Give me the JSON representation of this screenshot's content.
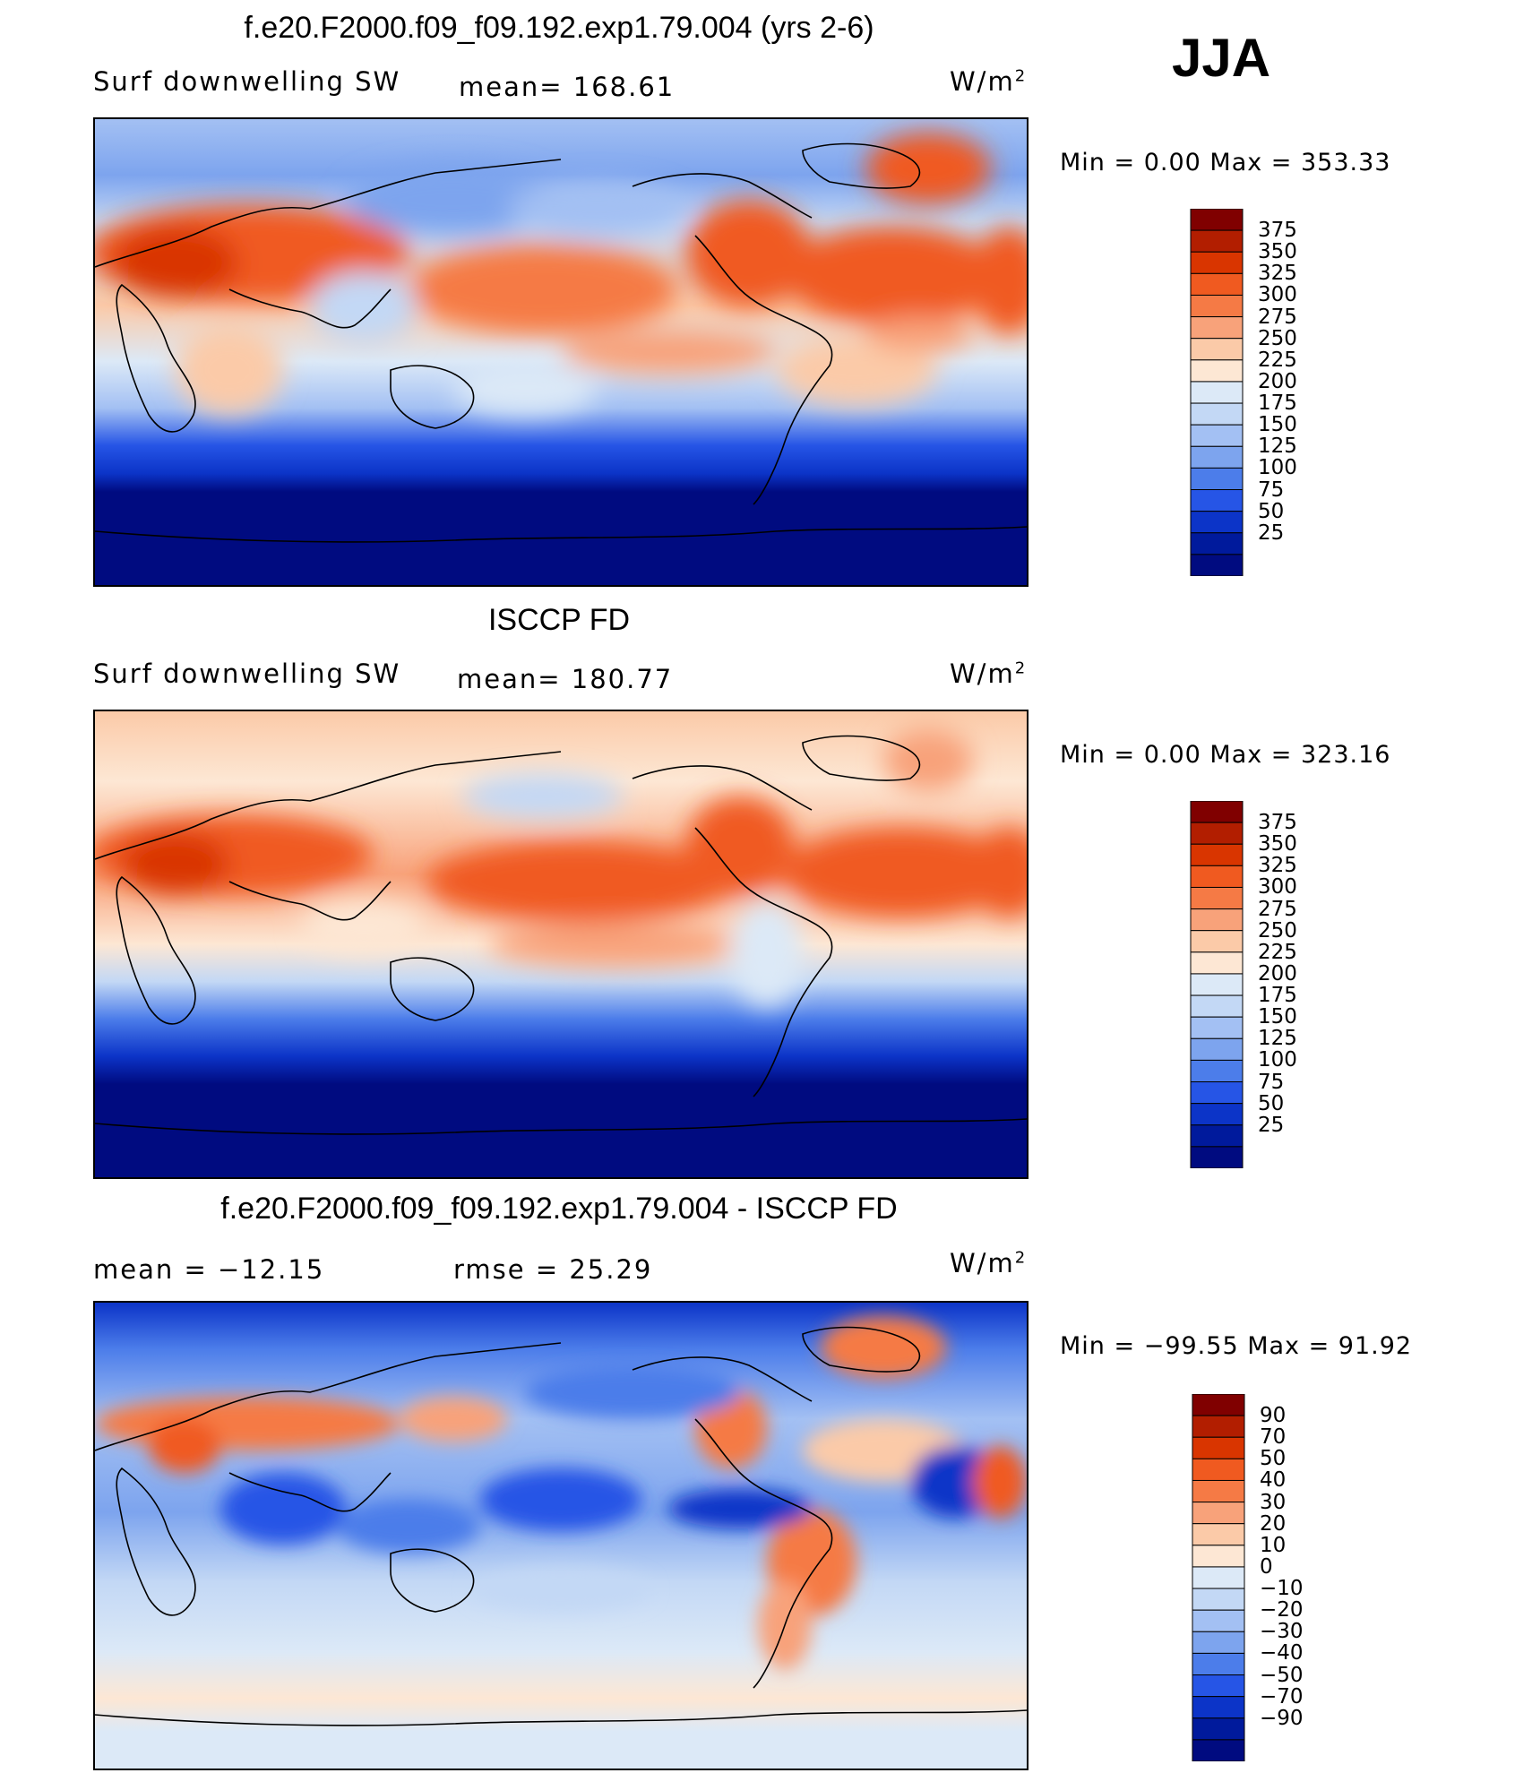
{
  "season": "JJA",
  "panels": [
    {
      "title": "f.e20.F2000.f09_f09.192.exp1.79.004 (yrs 2-6)",
      "left_label": "Surf  downwelling  SW",
      "center_label": "mean=  168.61",
      "units": "W/m",
      "units_sup": "2",
      "minmax": "Min  =      0.00  Max  =  353.33"
    },
    {
      "title": "ISCCP FD",
      "left_label": "Surf  downwelling  SW",
      "center_label": "mean=  180.77",
      "units": "W/m",
      "units_sup": "2",
      "minmax": "Min  =      0.00  Max  =  323.16"
    },
    {
      "title": "f.e20.F2000.f09_f09.192.exp1.79.004 - ISCCP FD",
      "left_label": "mean  =  −12.15",
      "center_label": "rmse  =    25.29",
      "units": "W/m",
      "units_sup": "2",
      "minmax": "Min  =  −99.55  Max  =    91.92"
    }
  ],
  "chart_data": [
    {
      "type": "heatmap",
      "title": "f.e20.F2000.f09_f09.192.exp1.79.004 (yrs 2-6)",
      "variable": "Surf downwelling SW",
      "mean": 168.61,
      "min": 0.0,
      "max": 353.33,
      "units": "W/m2",
      "colorbar_levels": [
        375,
        350,
        325,
        300,
        275,
        250,
        225,
        200,
        175,
        150,
        125,
        100,
        75,
        50,
        25
      ]
    },
    {
      "type": "heatmap",
      "title": "ISCCP FD",
      "variable": "Surf downwelling SW",
      "mean": 180.77,
      "min": 0.0,
      "max": 323.16,
      "units": "W/m2",
      "colorbar_levels": [
        375,
        350,
        325,
        300,
        275,
        250,
        225,
        200,
        175,
        150,
        125,
        100,
        75,
        50,
        25
      ]
    },
    {
      "type": "heatmap",
      "title": "f.e20.F2000.f09_f09.192.exp1.79.004 - ISCCP FD",
      "mean": -12.15,
      "rmse": 25.29,
      "min": -99.55,
      "max": 91.92,
      "units": "W/m2",
      "colorbar_levels": [
        "90",
        "70",
        "50",
        "40",
        "30",
        "20",
        "10",
        "0",
        "−10",
        "−20",
        "−30",
        "−40",
        "−50",
        "−70",
        "−90"
      ]
    }
  ],
  "colors": {
    "scale": [
      "#800000",
      "#b21e00",
      "#d93500",
      "#f05a20",
      "#f57a45",
      "#f8a27a",
      "#fbcaa8",
      "#fde7d4",
      "#dce9f7",
      "#c3d8f5",
      "#a3c0f3",
      "#7da4ee",
      "#4c7dea",
      "#2655e6",
      "#0c34c8",
      "#001a9c",
      "#000b80"
    ]
  }
}
